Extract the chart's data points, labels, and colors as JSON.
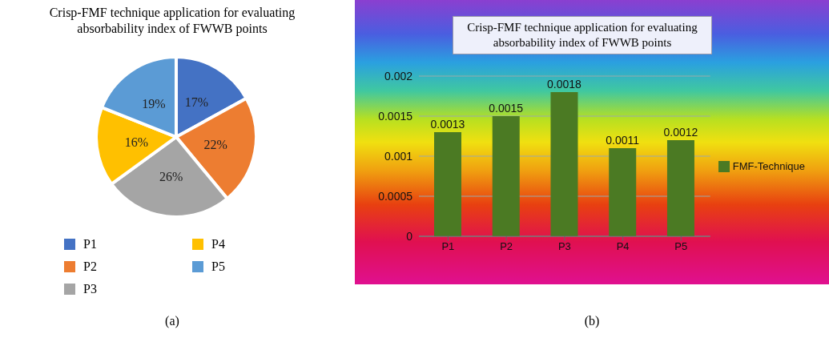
{
  "chart_data": [
    {
      "type": "pie",
      "title": "Crisp-FMF technique application for evaluating absorbability index of FWWB points",
      "categories": [
        "P1",
        "P2",
        "P3",
        "P4",
        "P5"
      ],
      "values": [
        17,
        22,
        26,
        16,
        19
      ],
      "colors": [
        "#4472c4",
        "#ed7d31",
        "#a5a5a5",
        "#ffc000",
        "#5b9bd5"
      ],
      "value_labels": [
        "17%",
        "22%",
        "26%",
        "16%",
        "19%"
      ],
      "legend": "bottom",
      "annotations": [
        "(a)"
      ]
    },
    {
      "type": "bar",
      "title": "Crisp-FMF technique application for evaluating absorbability index of FWWB points",
      "categories": [
        "P1",
        "P2",
        "P3",
        "P4",
        "P5"
      ],
      "series": [
        {
          "name": "FMF-Technique",
          "color": "#4b7a23",
          "values": [
            0.0013,
            0.0015,
            0.0018,
            0.0011,
            0.0012
          ]
        }
      ],
      "ylim": [
        0,
        0.002
      ],
      "yticks": [
        0,
        0.0005,
        0.001,
        0.0015,
        0.002
      ],
      "grid": "y",
      "data_labels": true,
      "legend": "right",
      "annotations": [
        "(b)"
      ]
    }
  ]
}
